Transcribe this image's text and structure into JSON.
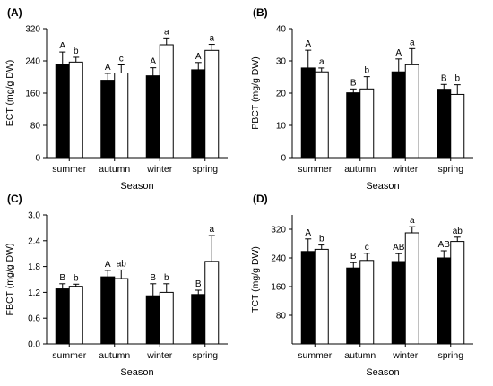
{
  "chart_data": [
    {
      "type": "bar",
      "panel_label": "(A)",
      "xlabel": "Season",
      "ylabel": "ECT (mg/g DW)",
      "ylim": [
        0,
        320
      ],
      "yticks": [
        "0",
        "80",
        "160",
        "240",
        "320"
      ],
      "categories": [
        "summer",
        "autumn",
        "winter",
        "spring"
      ],
      "series": [
        {
          "fill": "#000000",
          "values": [
            230,
            192,
            203,
            218
          ],
          "errors": [
            32,
            17,
            20,
            18
          ],
          "letters": [
            "A",
            "A",
            "A",
            "A"
          ]
        },
        {
          "fill": "#ffffff",
          "values": [
            237,
            210,
            280,
            266
          ],
          "errors": [
            12,
            20,
            17,
            15
          ],
          "letters": [
            "b",
            "c",
            "a",
            "a"
          ]
        }
      ]
    },
    {
      "type": "bar",
      "panel_label": "(B)",
      "xlabel": "Season",
      "ylabel": "PBCT (mg/g DW)",
      "ylim": [
        0,
        40
      ],
      "yticks": [
        "0",
        "10",
        "20",
        "30",
        "40"
      ],
      "categories": [
        "summer",
        "autumn",
        "winter",
        "spring"
      ],
      "series": [
        {
          "fill": "#000000",
          "values": [
            27.8,
            20.1,
            26.6,
            21.2
          ],
          "errors": [
            5.5,
            1.2,
            4.0,
            1.5
          ],
          "letters": [
            "A",
            "B",
            "A",
            "B"
          ]
        },
        {
          "fill": "#ffffff",
          "values": [
            26.6,
            21.3,
            28.8,
            19.6
          ],
          "errors": [
            1.2,
            3.8,
            5.0,
            3.0
          ],
          "letters": [
            "a",
            "b",
            "a",
            "b"
          ]
        }
      ]
    },
    {
      "type": "bar",
      "panel_label": "(C)",
      "xlabel": "Season",
      "ylabel": "FBCT (mg/g DW)",
      "ylim": [
        0,
        3.0
      ],
      "yticks": [
        "0.0",
        "0.6",
        "1.2",
        "1.8",
        "2.4",
        "3.0"
      ],
      "categories": [
        "summer",
        "autumn",
        "winter",
        "spring"
      ],
      "series": [
        {
          "fill": "#000000",
          "values": [
            1.28,
            1.56,
            1.12,
            1.15
          ],
          "errors": [
            0.12,
            0.15,
            0.28,
            0.1
          ],
          "letters": [
            "B",
            "A",
            "B",
            "B"
          ]
        },
        {
          "fill": "#ffffff",
          "values": [
            1.34,
            1.52,
            1.2,
            1.92
          ],
          "errors": [
            0.05,
            0.2,
            0.2,
            0.6
          ],
          "letters": [
            "b",
            "ab",
            "b",
            "a"
          ]
        }
      ]
    },
    {
      "type": "bar",
      "panel_label": "(D)",
      "xlabel": "Season",
      "ylabel": "TCT (mg/g DW)",
      "ylim": [
        0,
        360
      ],
      "yticks": [
        "80",
        "160",
        "240",
        "320"
      ],
      "categories": [
        "summer",
        "autumn",
        "winter",
        "spring"
      ],
      "series": [
        {
          "fill": "#000000",
          "values": [
            258,
            212,
            230,
            240
          ],
          "errors": [
            35,
            15,
            22,
            20
          ],
          "letters": [
            "A",
            "B",
            "AB",
            "AB"
          ]
        },
        {
          "fill": "#ffffff",
          "values": [
            264,
            233,
            310,
            286
          ],
          "errors": [
            12,
            20,
            17,
            12
          ],
          "letters": [
            "b",
            "c",
            "a",
            "ab"
          ]
        }
      ]
    }
  ]
}
